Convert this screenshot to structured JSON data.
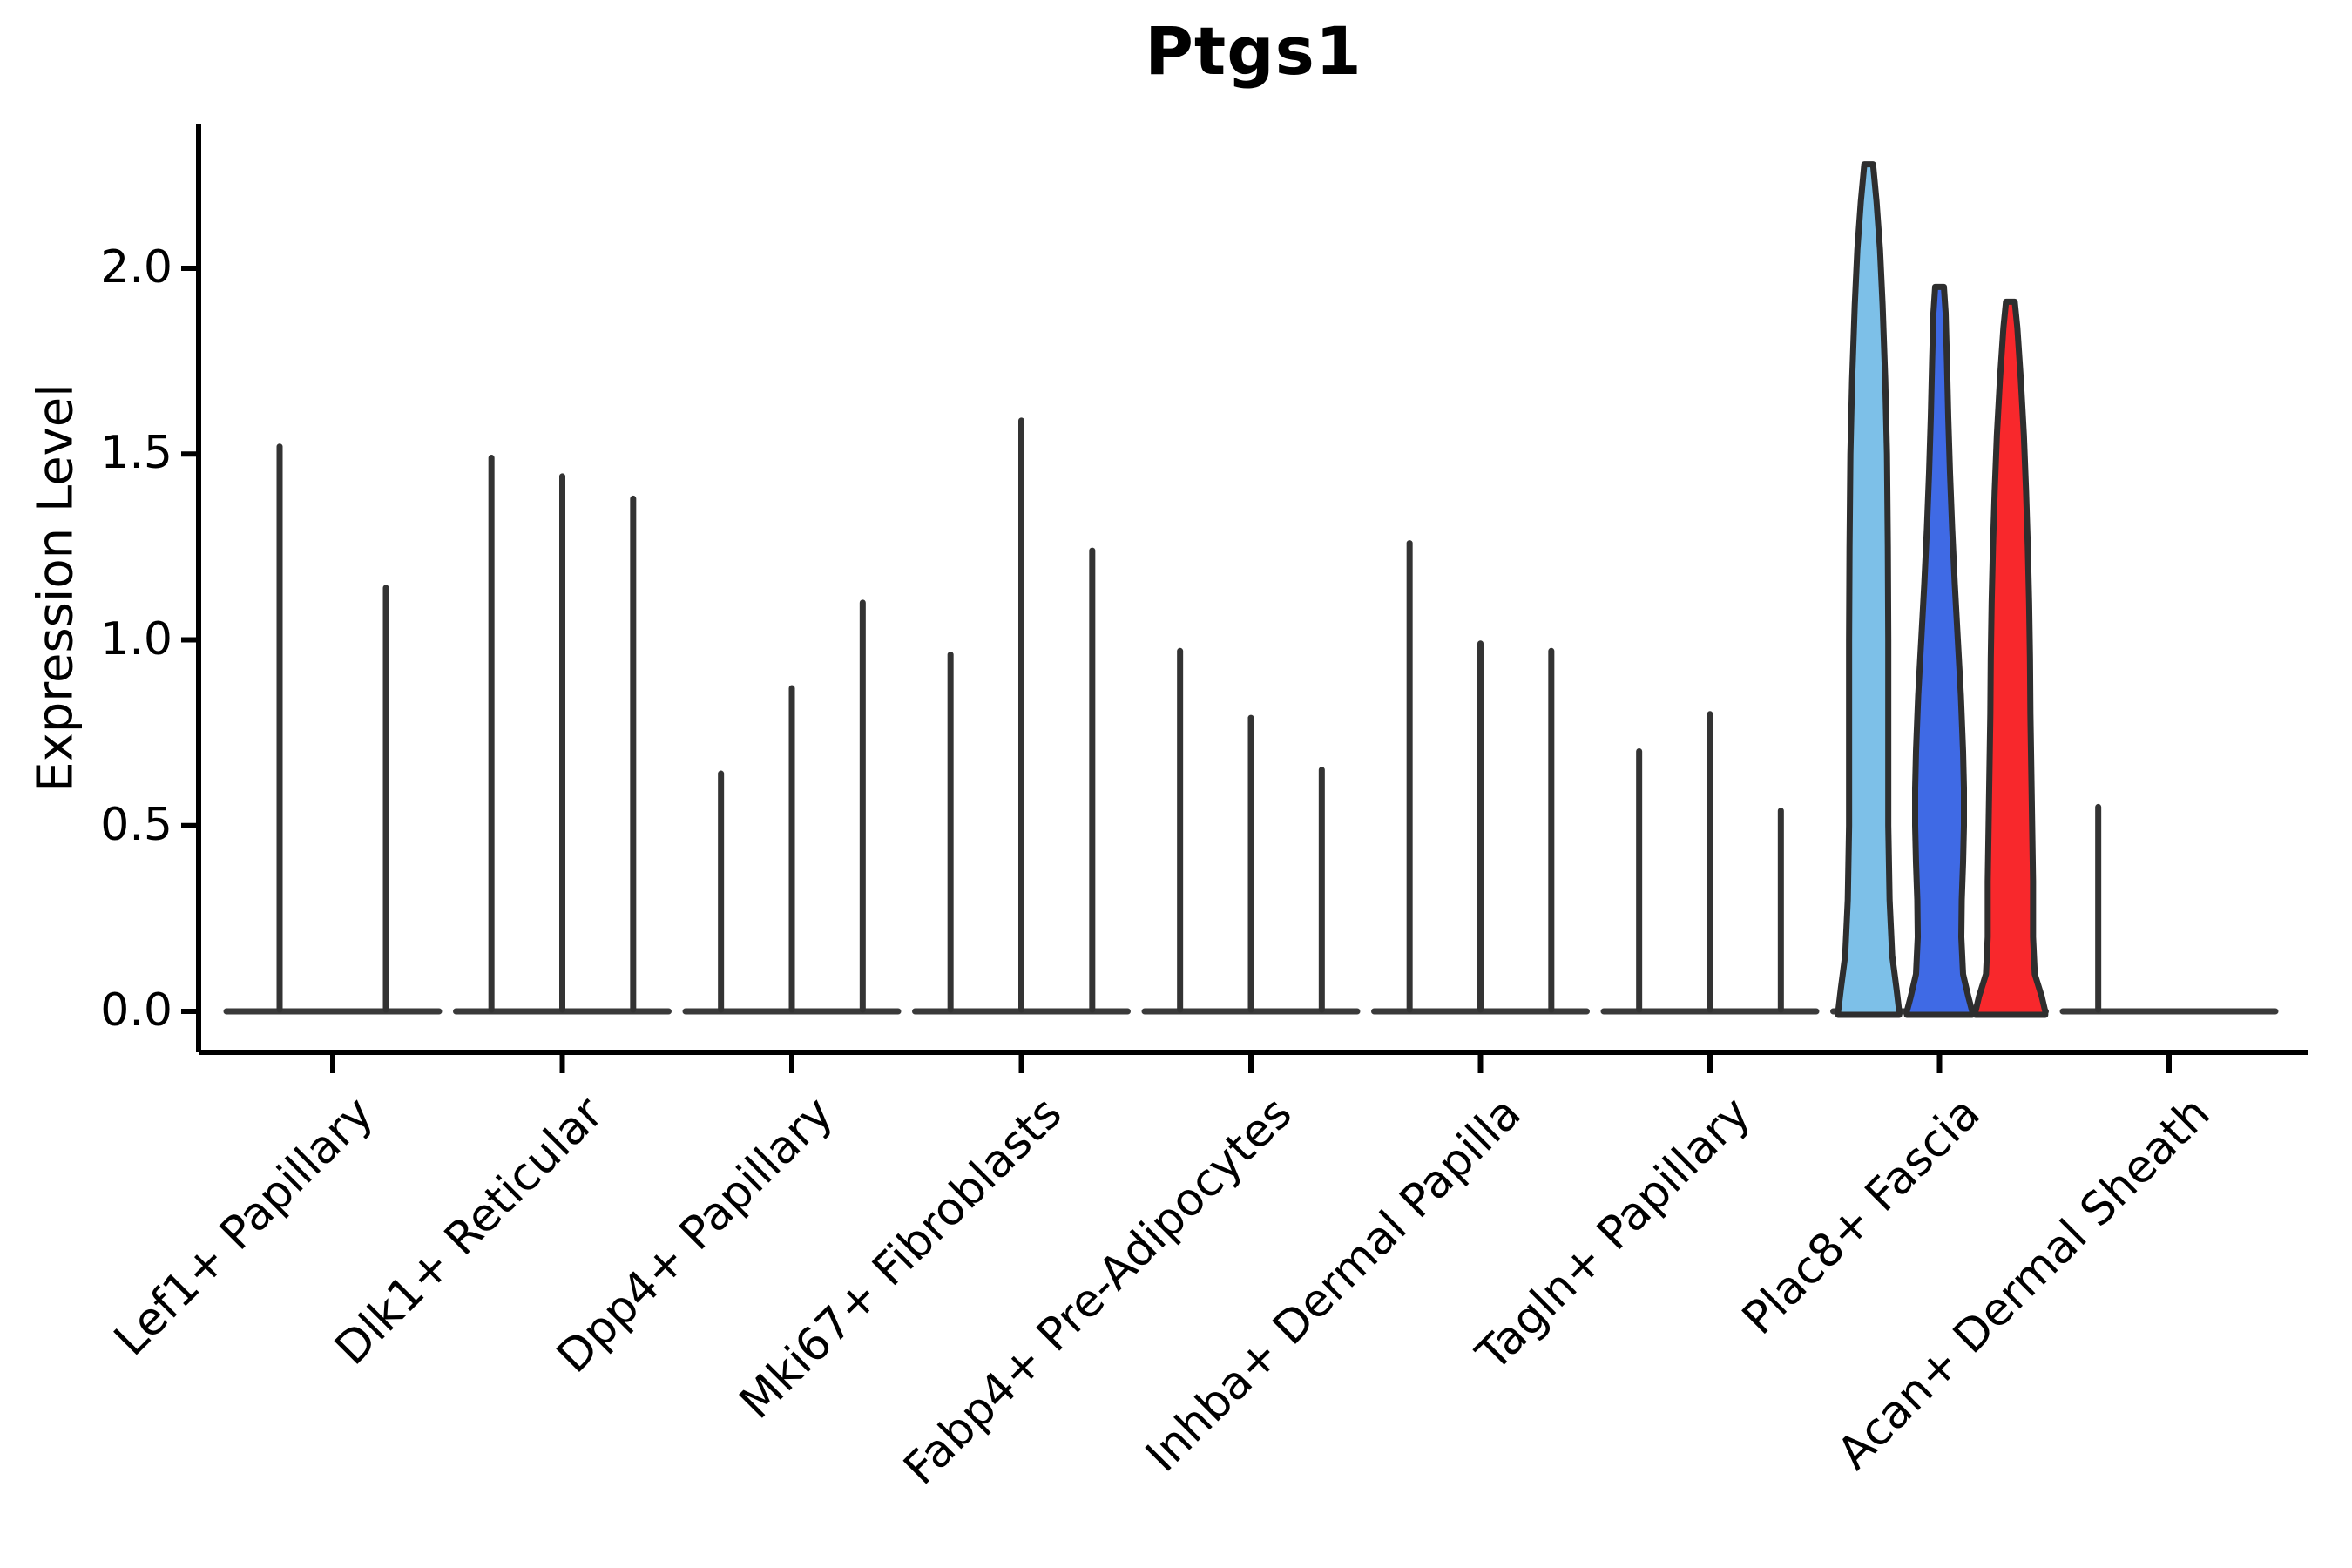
{
  "title": "Ptgs1",
  "y_axis": {
    "label": "Expression Level",
    "ticks": [
      {
        "label": "0.0",
        "value": 0.0
      },
      {
        "label": "0.5",
        "value": 0.5
      },
      {
        "label": "1.0",
        "value": 1.0
      },
      {
        "label": "1.5",
        "value": 1.5
      },
      {
        "label": "2.0",
        "value": 2.0
      }
    ]
  },
  "chart_data": {
    "type": "violin",
    "title": "Ptgs1",
    "xlabel": "",
    "ylabel": "Expression Level",
    "ylim": [
      0,
      2.4
    ],
    "grid": false,
    "legend": "none",
    "categories": [
      "Lef1+ Papillary",
      "Dlk1+ Reticular",
      "Dpp4+ Papillary",
      "Mki67+ Fibroblasts",
      "Fabp4+ Pre-Adipocytes",
      "Inhba+ Dermal Papilla",
      "Tagln+ Papillary",
      "Plac8+ Fascia",
      "Acan+ Dermal Sheath"
    ],
    "description": "Each category shows 2-3 narrow spike-like violins (peak expression values below); Plac8+ Fascia has three wide highlighted violins.",
    "groups": [
      {
        "category": "Lef1+ Papillary",
        "violins": [
          {
            "peak": 1.52
          },
          {
            "peak": 1.14
          }
        ]
      },
      {
        "category": "Dlk1+ Reticular",
        "violins": [
          {
            "peak": 1.49
          },
          {
            "peak": 1.44
          },
          {
            "peak": 1.38
          }
        ]
      },
      {
        "category": "Dpp4+ Papillary",
        "violins": [
          {
            "peak": 0.64
          },
          {
            "peak": 0.87
          },
          {
            "peak": 1.1
          }
        ]
      },
      {
        "category": "Mki67+ Fibroblasts",
        "violins": [
          {
            "peak": 0.96
          },
          {
            "peak": 1.59
          },
          {
            "peak": 1.24
          }
        ]
      },
      {
        "category": "Fabp4+ Pre-Adipocytes",
        "violins": [
          {
            "peak": 0.97
          },
          {
            "peak": 0.79
          },
          {
            "peak": 0.65
          }
        ]
      },
      {
        "category": "Inhba+ Dermal Papilla",
        "violins": [
          {
            "peak": 1.26
          },
          {
            "peak": 0.99
          },
          {
            "peak": 0.97
          }
        ]
      },
      {
        "category": "Tagln+ Papillary",
        "violins": [
          {
            "peak": 0.7
          },
          {
            "peak": 0.8
          },
          {
            "peak": 0.54
          }
        ]
      },
      {
        "category": "Plac8+ Fascia",
        "violins": [
          {
            "peak": 2.28,
            "fill": "#7DC0E8",
            "profile": [
              [
                2.28,
                5
              ],
              [
                2.18,
                9
              ],
              [
                2.05,
                13
              ],
              [
                1.9,
                16
              ],
              [
                1.7,
                19
              ],
              [
                1.5,
                21
              ],
              [
                1.25,
                22
              ],
              [
                1.0,
                22.5
              ],
              [
                0.75,
                22.5
              ],
              [
                0.5,
                22.5
              ],
              [
                0.3,
                24
              ],
              [
                0.15,
                27
              ],
              [
                0.06,
                32
              ],
              [
                0.0,
                35
              ]
            ]
          },
          {
            "peak": 1.95,
            "fill": "#3F6AE5",
            "profile": [
              [
                1.95,
                5
              ],
              [
                1.88,
                7
              ],
              [
                1.75,
                8.5
              ],
              [
                1.6,
                10
              ],
              [
                1.45,
                12
              ],
              [
                1.3,
                14.5
              ],
              [
                1.15,
                17.5
              ],
              [
                1.0,
                21
              ],
              [
                0.85,
                24.5
              ],
              [
                0.7,
                27
              ],
              [
                0.6,
                28
              ],
              [
                0.5,
                28
              ],
              [
                0.4,
                27
              ],
              [
                0.3,
                25.5
              ],
              [
                0.2,
                25
              ],
              [
                0.1,
                27
              ],
              [
                0.04,
                33
              ],
              [
                0.0,
                37.5
              ]
            ]
          },
          {
            "peak": 1.91,
            "fill": "#F8282C",
            "profile": [
              [
                1.91,
                5
              ],
              [
                1.84,
                8
              ],
              [
                1.7,
                12
              ],
              [
                1.55,
                15.5
              ],
              [
                1.4,
                18
              ],
              [
                1.25,
                20
              ],
              [
                1.1,
                21.5
              ],
              [
                0.95,
                22.5
              ],
              [
                0.8,
                23
              ],
              [
                0.65,
                24
              ],
              [
                0.5,
                25
              ],
              [
                0.35,
                26
              ],
              [
                0.2,
                26
              ],
              [
                0.1,
                28
              ],
              [
                0.04,
                36
              ],
              [
                0.0,
                40
              ]
            ]
          }
        ]
      },
      {
        "category": "Acan+ Dermal Sheath",
        "violins": [
          {
            "peak": 0.55
          },
          {
            "peak": 0
          },
          {
            "peak": 0
          }
        ]
      }
    ],
    "colors": {
      "spike": "#333333",
      "baseline": "#3a3a3a",
      "axis": "#000000",
      "violin_outline": "#2e2e2e",
      "highlight_fills": [
        "#7DC0E8",
        "#3F6AE5",
        "#F8282C"
      ]
    }
  }
}
